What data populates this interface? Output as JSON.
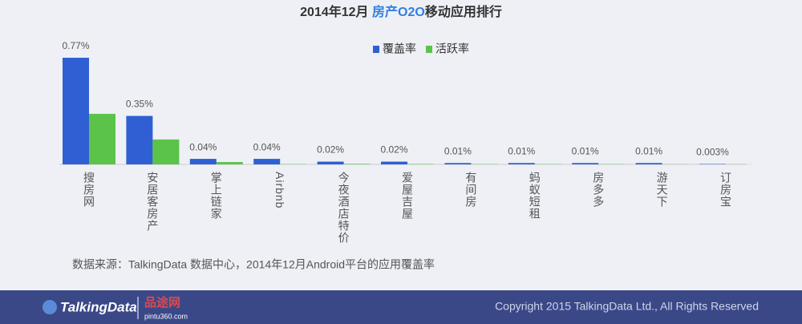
{
  "chart_data": {
    "type": "bar",
    "title": "2014年12月",
    "title_highlight": "房产O2O",
    "title_suffix": "移动应用排行",
    "categories": [
      "搜房网",
      "安居客房产",
      "掌上链家",
      "Airbnb",
      "今夜酒店特价",
      "爱屋吉屋",
      "有间房",
      "蚂蚁短租",
      "房多多",
      "游天下",
      "订房宝"
    ],
    "series": [
      {
        "name": "覆盖率",
        "color": "#2f5fd3",
        "values": [
          0.77,
          0.35,
          0.04,
          0.04,
          0.02,
          0.02,
          0.01,
          0.01,
          0.01,
          0.01,
          0.003
        ],
        "value_labels": [
          "0.77%",
          "0.35%",
          "0.04%",
          "0.04%",
          "0.02%",
          "0.02%",
          "0.01%",
          "0.01%",
          "0.01%",
          "0.01%",
          "0.003%"
        ]
      },
      {
        "name": "活跃率",
        "color": "#5cc34a",
        "values": [
          0.365,
          0.18,
          0.017,
          0.002,
          0.004,
          0.003,
          0.002,
          0.002,
          0.002,
          0.001,
          0.001
        ]
      }
    ],
    "legend": "top",
    "source": "数据来源：TalkingData 数据中心，2014年12月Android平台的应用覆盖率"
  },
  "footer": {
    "logo": "TalkingData",
    "partner": "品途网",
    "partner_url": "pintu360.com",
    "copyright": "Copyright 2015 TalkingData Ltd., All Rights Reserved"
  }
}
